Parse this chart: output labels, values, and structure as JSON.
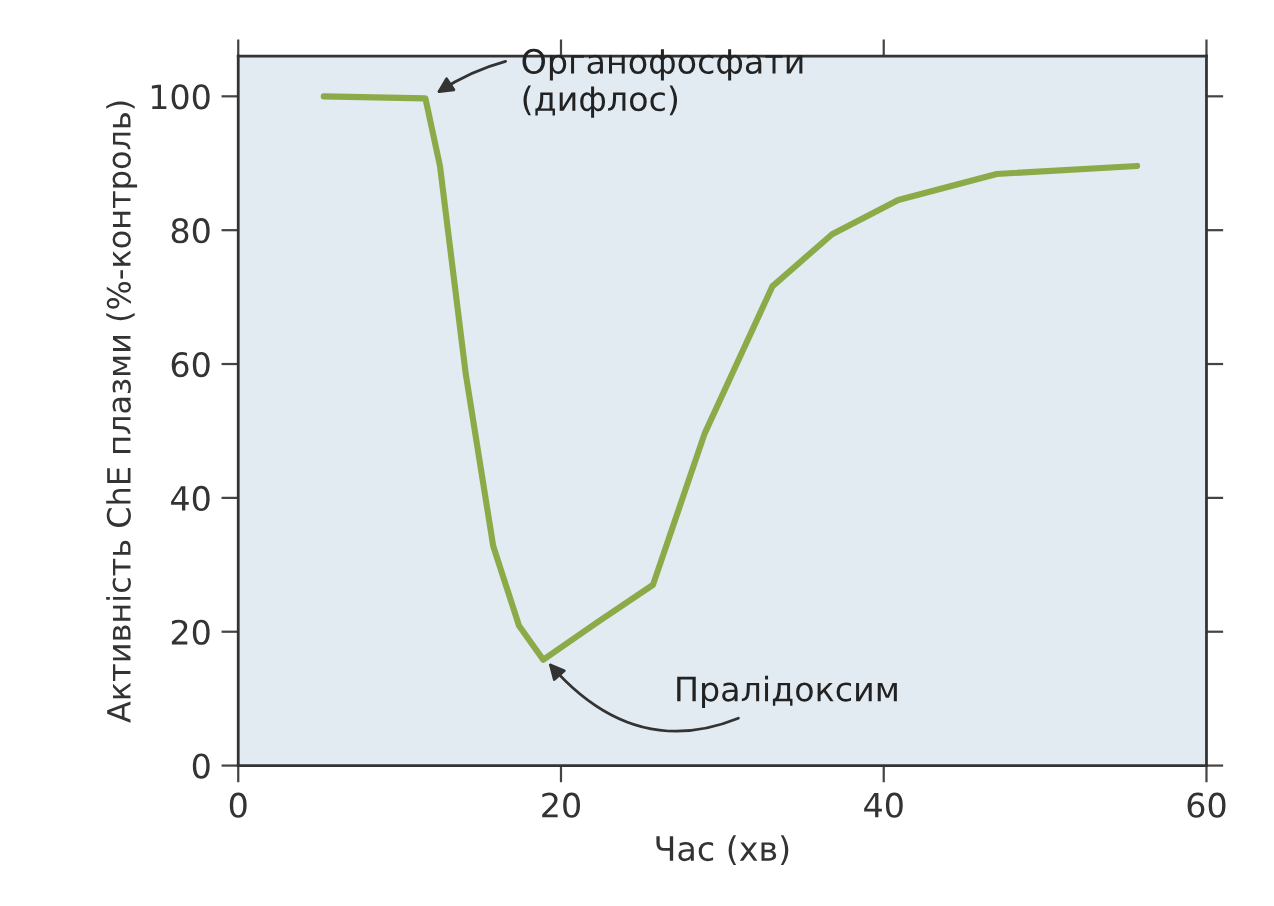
{
  "chart_data": {
    "type": "line",
    "xlabel": "Час (хв)",
    "ylabel": "Активність ChE плазми (%-контроль)",
    "xlim": [
      0,
      60
    ],
    "ylim": [
      0,
      106
    ],
    "xticks": [
      0,
      20,
      40,
      60
    ],
    "yticks": [
      0,
      20,
      40,
      60,
      80,
      100
    ],
    "grid": false,
    "marker": "none",
    "line_style": "solid",
    "series": [
      {
        "color": "#8bab48",
        "x": [
          5.3,
          11.6,
          12.5,
          14.1,
          15.8,
          17.4,
          18.9,
          22.3,
          25.7,
          28.9,
          30.6,
          33.1,
          36.8,
          40.9,
          47,
          55.7
        ],
        "values": [
          100,
          99.7,
          89.6,
          58.5,
          32.8,
          20.9,
          15.8,
          21.5,
          27,
          49.6,
          58.5,
          71.6,
          79.4,
          84.5,
          88.4,
          89.6
        ]
      }
    ],
    "annotations": [
      {
        "text": "Органофосфати\n(дифлос)",
        "x": 12,
        "y": 100
      },
      {
        "text": "Пралідоксим",
        "x": 19,
        "y": 16
      }
    ]
  }
}
